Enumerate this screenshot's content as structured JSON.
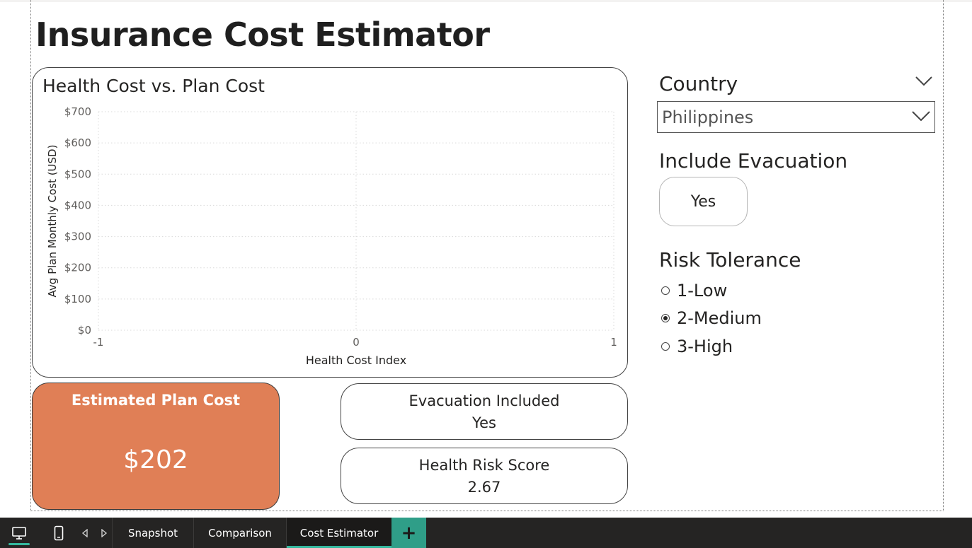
{
  "report": {
    "title": "Insurance Cost Estimator"
  },
  "chart": {
    "title": "Health Cost vs. Plan Cost",
    "xlabel": "Health Cost Index",
    "ylabel": "Avg Plan Monthly Cost (USD)"
  },
  "chart_data": {
    "type": "scatter",
    "title": "Health Cost vs. Plan Cost",
    "xlabel": "Health Cost Index",
    "ylabel": "Avg Plan Monthly Cost (USD)",
    "xlim": [
      -1,
      1
    ],
    "ylim": [
      0,
      700
    ],
    "x_ticks": [
      "-1",
      "0",
      "1"
    ],
    "y_ticks": [
      "$0",
      "$100",
      "$200",
      "$300",
      "$400",
      "$500",
      "$600",
      "$700"
    ],
    "series": [],
    "grid": true,
    "gridline_color": "#d9d9d9"
  },
  "filters": {
    "country": {
      "label": "Country",
      "selected": "Philippines"
    },
    "evacuation": {
      "label": "Include Evacuation",
      "option": "Yes"
    },
    "risk": {
      "label": "Risk Tolerance",
      "options": [
        {
          "label": "1-Low",
          "selected": false
        },
        {
          "label": "2-Medium",
          "selected": true
        },
        {
          "label": "3-High",
          "selected": false
        }
      ]
    }
  },
  "cards": {
    "plan_cost": {
      "label": "Estimated Plan Cost",
      "value": "$202",
      "color": "#e07f56"
    },
    "evacuation": {
      "label": "Evacuation Included",
      "value": "Yes"
    },
    "risk_score": {
      "label": "Health Risk Score",
      "value": "2.67"
    }
  },
  "taskbar": {
    "view_icons": [
      "desktop-view-icon",
      "mobile-view-icon"
    ],
    "tabs": [
      {
        "label": "Snapshot",
        "active": false
      },
      {
        "label": "Comparison",
        "active": false
      },
      {
        "label": "Cost Estimator",
        "active": true
      }
    ],
    "add_icon": "+",
    "accent": "#34b89e"
  }
}
